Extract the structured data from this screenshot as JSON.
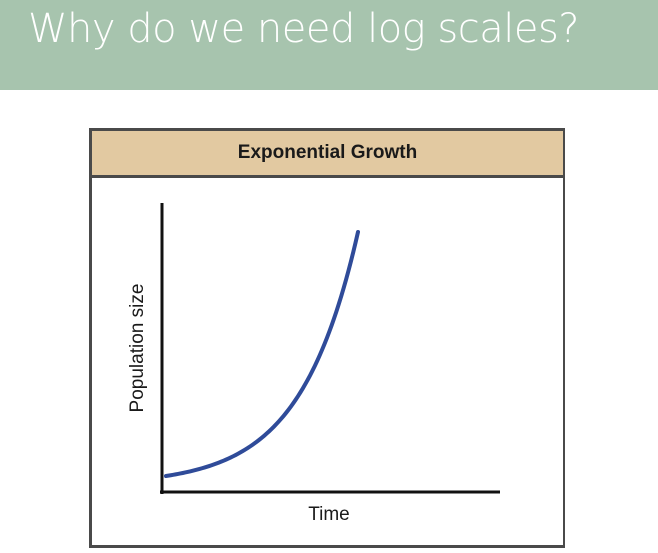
{
  "slide": {
    "title": "Why do we need log scales?",
    "title_bar_color": "#a7c4ae"
  },
  "figure": {
    "header_color": "#e2c9a1",
    "curve_color": "#2f4b99"
  },
  "chart_data": {
    "type": "line",
    "title": "Exponential Growth",
    "xlabel": "Time",
    "ylabel": "Population size",
    "x_ticks": [],
    "y_ticks": [],
    "grid": false,
    "curve": "exponential",
    "series": [
      {
        "x": [
          0,
          0.1,
          0.2,
          0.3,
          0.4,
          0.5,
          0.6,
          0.7,
          0.8,
          0.9,
          1.0
        ],
        "values": [
          1.0,
          1.21,
          1.7,
          2.5,
          3.69,
          5.39,
          7.75,
          10.96,
          15.26,
          21.0,
          28.6
        ]
      }
    ]
  }
}
